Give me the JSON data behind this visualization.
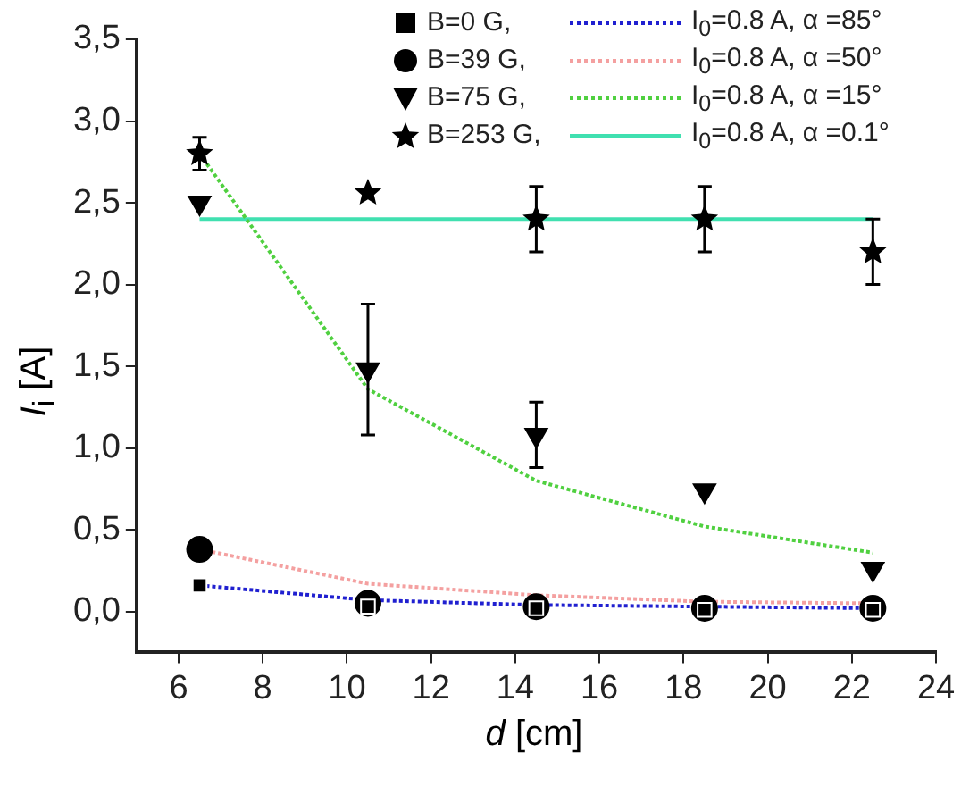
{
  "chart_data": {
    "type": "scatter",
    "xlabel": "d [cm]",
    "ylabel": "I$_{i}$ [A]",
    "xlim": [
      5,
      24
    ],
    "xticks": [
      6,
      8,
      10,
      12,
      14,
      16,
      18,
      20,
      22,
      24
    ],
    "ylim": [
      -0.25,
      3.5
    ],
    "yticks": [
      {
        "value": 0,
        "label": "0,0"
      },
      {
        "value": 0.5,
        "label": "0,5"
      },
      {
        "value": 1,
        "label": "1,0"
      },
      {
        "value": 1.5,
        "label": "1,5"
      },
      {
        "value": 2,
        "label": "2,0"
      },
      {
        "value": 2.5,
        "label": "2,5"
      },
      {
        "value": 3,
        "label": "3,0"
      },
      {
        "value": 3.5,
        "label": "3,5"
      }
    ],
    "grid": false,
    "legend": "top right",
    "series": [
      {
        "name": "B=0 G,",
        "type": "scatter",
        "marker": "square",
        "color": "#000000",
        "x": [
          6.5,
          10.5,
          14.5,
          18.5,
          22.5
        ],
        "values": [
          0.16,
          0.03,
          0.02,
          0.01,
          0.01
        ]
      },
      {
        "name": "I$_{0}$=0.8 A, α =85°",
        "type": "line",
        "marker": "none",
        "line_style": "dotted",
        "color": "#2020d0",
        "x": [
          6.5,
          10.5,
          14.5,
          18.5,
          22.5
        ],
        "values": [
          0.16,
          0.07,
          0.04,
          0.03,
          0.02
        ]
      },
      {
        "name": "B=39 G,",
        "type": "scatter",
        "marker": "circle",
        "color": "#000000",
        "x": [
          6.5,
          10.5,
          14.5,
          18.5,
          22.5
        ],
        "values": [
          0.38,
          0.05,
          0.03,
          0.02,
          0.02
        ]
      },
      {
        "name": "I$_{0}$=0.8 A, α =50°",
        "type": "line",
        "marker": "none",
        "line_style": "dotted",
        "color": "#f4a0a0",
        "x": [
          6.5,
          10.5,
          14.5,
          18.5,
          22.5
        ],
        "values": [
          0.38,
          0.17,
          0.1,
          0.06,
          0.05
        ]
      },
      {
        "name": "B=75 G,",
        "type": "scatter",
        "marker": "triangle",
        "color": "#000000",
        "x": [
          6.5,
          10.5,
          14.5,
          18.5,
          22.5
        ],
        "values": [
          2.5,
          1.48,
          1.08,
          0.74,
          0.26
        ],
        "errors": [
          null,
          0.4,
          0.2,
          null,
          null
        ]
      },
      {
        "name": "I$_{0}$=0.8 A, α =15°",
        "type": "line",
        "marker": "none",
        "line_style": "dotted",
        "color": "#50d040",
        "x": [
          6.5,
          10.5,
          14.5,
          18.5,
          22.5
        ],
        "values": [
          2.8,
          1.36,
          0.8,
          0.52,
          0.36
        ]
      },
      {
        "name": "B=253 G,",
        "type": "scatter",
        "marker": "star",
        "color": "#000000",
        "x": [
          6.5,
          10.5,
          14.5,
          18.5,
          22.5
        ],
        "values": [
          2.8,
          2.56,
          2.4,
          2.4,
          2.2
        ],
        "errors": [
          0.1,
          null,
          0.2,
          0.2,
          0.2
        ]
      },
      {
        "name": "I$_{0}$=0.8 A, α =0.1°",
        "type": "line",
        "marker": "none",
        "line_style": "solid",
        "color": "#40e0b0",
        "x": [
          6.5,
          22.5
        ],
        "values": [
          2.4,
          2.4
        ]
      }
    ]
  }
}
